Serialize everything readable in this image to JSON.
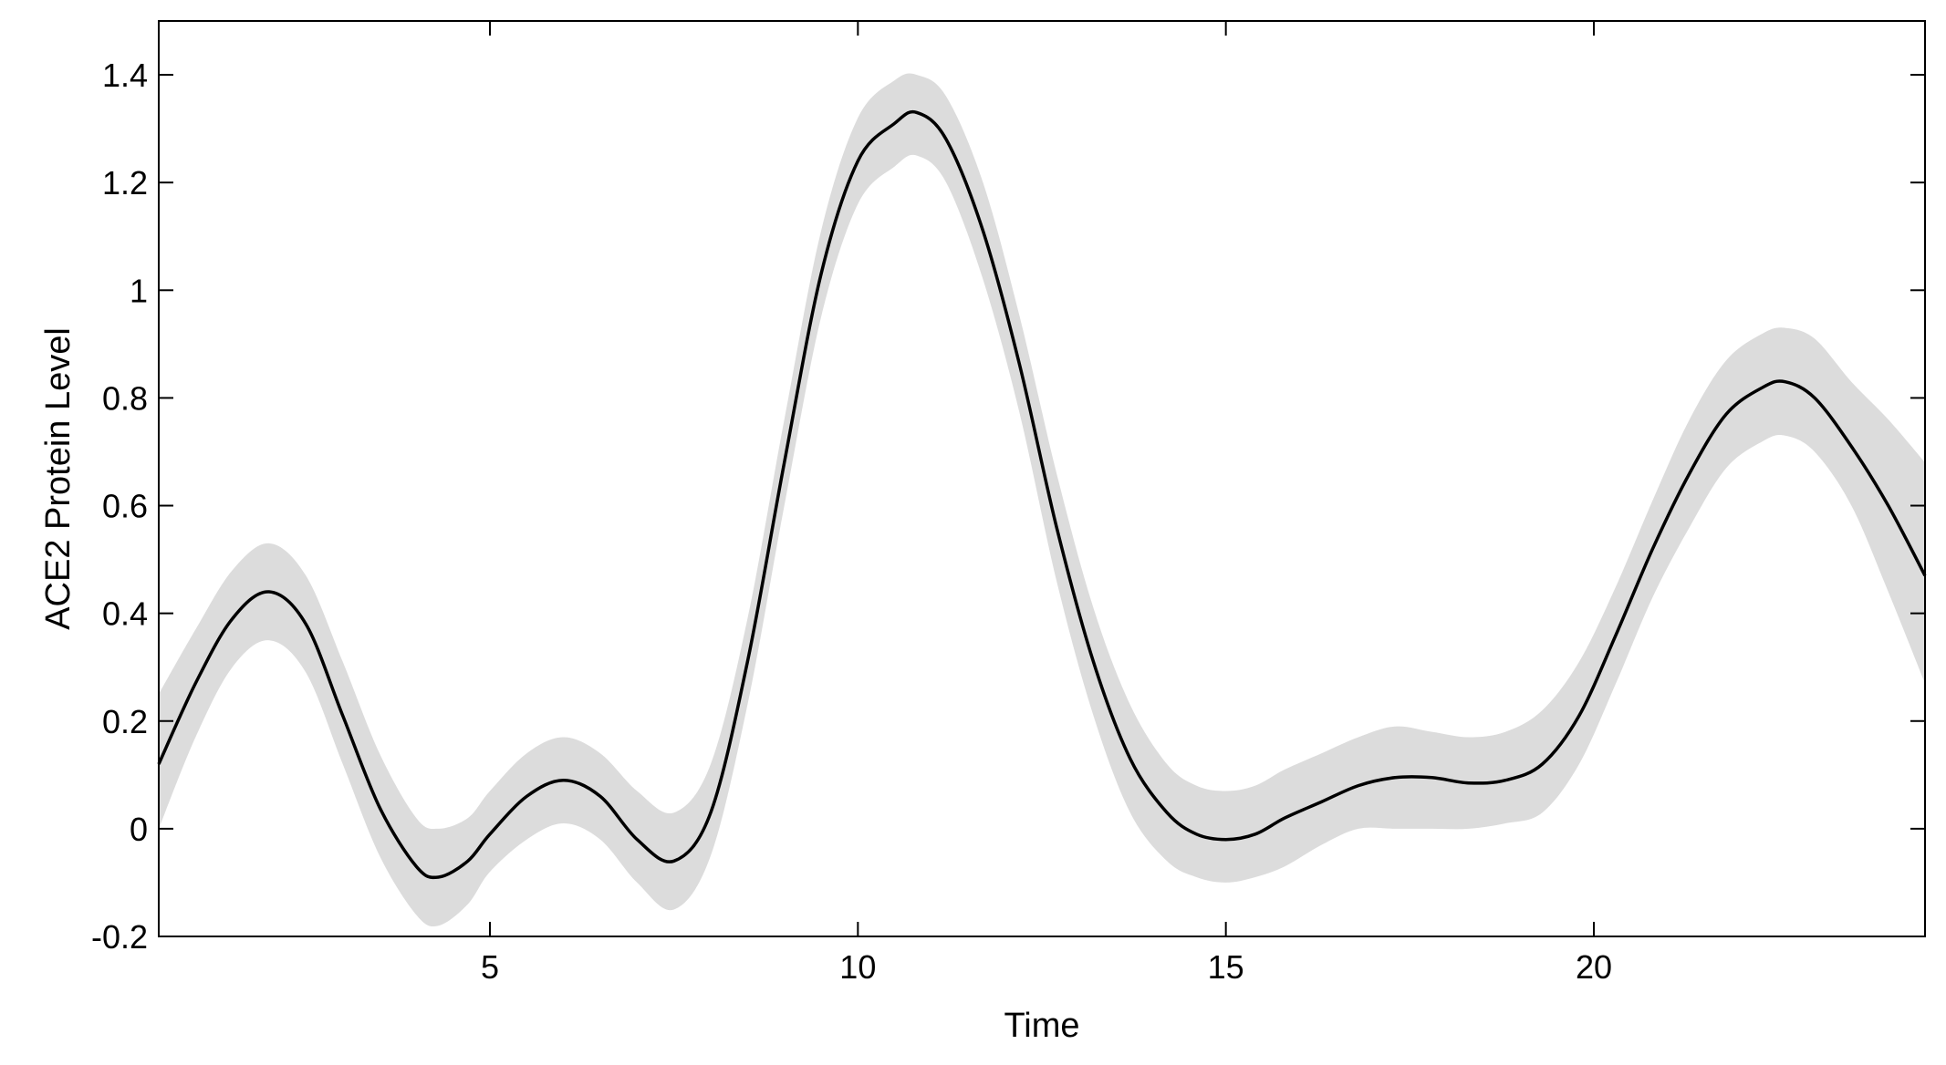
{
  "chart_data": {
    "type": "area",
    "title": "",
    "xlabel": "Time",
    "ylabel": "ACE2 Protein Level",
    "xlim": [
      0.5,
      24.5
    ],
    "ylim": [
      -0.2,
      1.5
    ],
    "xticks": [
      5,
      10,
      15,
      20
    ],
    "xtick_labels": [
      "5",
      "10",
      "15",
      "20"
    ],
    "yticks": [
      -0.2,
      0,
      0.2,
      0.4,
      0.6,
      0.8,
      1,
      1.2,
      1.4
    ],
    "ytick_labels": [
      "-0.2",
      "0",
      "0.2",
      "0.4",
      "0.6",
      "0.8",
      "1",
      "1.2",
      "1.4"
    ],
    "grid": false,
    "series": [
      {
        "kind": "mean-line",
        "color": "#000000",
        "x": [
          0.5,
          1.0,
          1.5,
          2.0,
          2.5,
          3.0,
          3.5,
          4.0,
          4.3,
          4.7,
          5.0,
          5.5,
          6.0,
          6.5,
          7.0,
          7.5,
          8.0,
          8.5,
          9.0,
          9.5,
          10.0,
          10.5,
          10.8,
          11.2,
          11.7,
          12.2,
          12.7,
          13.2,
          13.7,
          14.2,
          14.6,
          15.0,
          15.4,
          15.8,
          16.3,
          16.8,
          17.3,
          17.8,
          18.3,
          18.8,
          19.3,
          19.8,
          20.3,
          20.8,
          21.3,
          21.8,
          22.3,
          22.6,
          23.0,
          23.5,
          24.0,
          24.5
        ],
        "values": [
          0.12,
          0.27,
          0.39,
          0.44,
          0.38,
          0.21,
          0.04,
          -0.07,
          -0.09,
          -0.06,
          -0.01,
          0.06,
          0.09,
          0.06,
          -0.02,
          -0.06,
          0.03,
          0.31,
          0.68,
          1.03,
          1.24,
          1.31,
          1.33,
          1.28,
          1.11,
          0.86,
          0.56,
          0.31,
          0.13,
          0.03,
          -0.01,
          -0.02,
          -0.01,
          0.02,
          0.05,
          0.08,
          0.095,
          0.095,
          0.085,
          0.09,
          0.12,
          0.21,
          0.36,
          0.52,
          0.66,
          0.77,
          0.82,
          0.83,
          0.8,
          0.71,
          0.6,
          0.47
        ]
      },
      {
        "kind": "confidence-band",
        "color": "#dcdcdc",
        "x": [
          0.5,
          1.0,
          1.5,
          2.0,
          2.5,
          3.0,
          3.5,
          4.0,
          4.3,
          4.7,
          5.0,
          5.5,
          6.0,
          6.5,
          7.0,
          7.5,
          8.0,
          8.5,
          9.0,
          9.5,
          10.0,
          10.5,
          10.8,
          11.2,
          11.7,
          12.2,
          12.7,
          13.2,
          13.7,
          14.2,
          14.6,
          15.0,
          15.4,
          15.8,
          16.3,
          16.8,
          17.3,
          17.8,
          18.3,
          18.8,
          19.3,
          19.8,
          20.3,
          20.8,
          21.3,
          21.8,
          22.3,
          22.6,
          23.0,
          23.5,
          24.0,
          24.5
        ],
        "upper": [
          0.25,
          0.37,
          0.48,
          0.53,
          0.47,
          0.31,
          0.14,
          0.02,
          0.0,
          0.02,
          0.07,
          0.14,
          0.17,
          0.14,
          0.07,
          0.03,
          0.12,
          0.39,
          0.76,
          1.11,
          1.32,
          1.39,
          1.4,
          1.36,
          1.2,
          0.95,
          0.66,
          0.41,
          0.23,
          0.12,
          0.08,
          0.07,
          0.08,
          0.11,
          0.14,
          0.17,
          0.19,
          0.18,
          0.17,
          0.18,
          0.22,
          0.31,
          0.45,
          0.61,
          0.76,
          0.87,
          0.92,
          0.93,
          0.91,
          0.83,
          0.76,
          0.68
        ],
        "lower": [
          0.0,
          0.17,
          0.3,
          0.35,
          0.29,
          0.12,
          -0.05,
          -0.16,
          -0.18,
          -0.14,
          -0.08,
          -0.02,
          0.01,
          -0.02,
          -0.1,
          -0.15,
          -0.05,
          0.23,
          0.6,
          0.95,
          1.16,
          1.23,
          1.25,
          1.2,
          1.02,
          0.77,
          0.46,
          0.21,
          0.03,
          -0.06,
          -0.09,
          -0.1,
          -0.09,
          -0.07,
          -0.03,
          -0.0,
          0.0,
          0.0,
          0.0,
          0.01,
          0.03,
          0.12,
          0.27,
          0.43,
          0.56,
          0.67,
          0.72,
          0.73,
          0.7,
          0.6,
          0.44,
          0.27
        ]
      }
    ]
  }
}
